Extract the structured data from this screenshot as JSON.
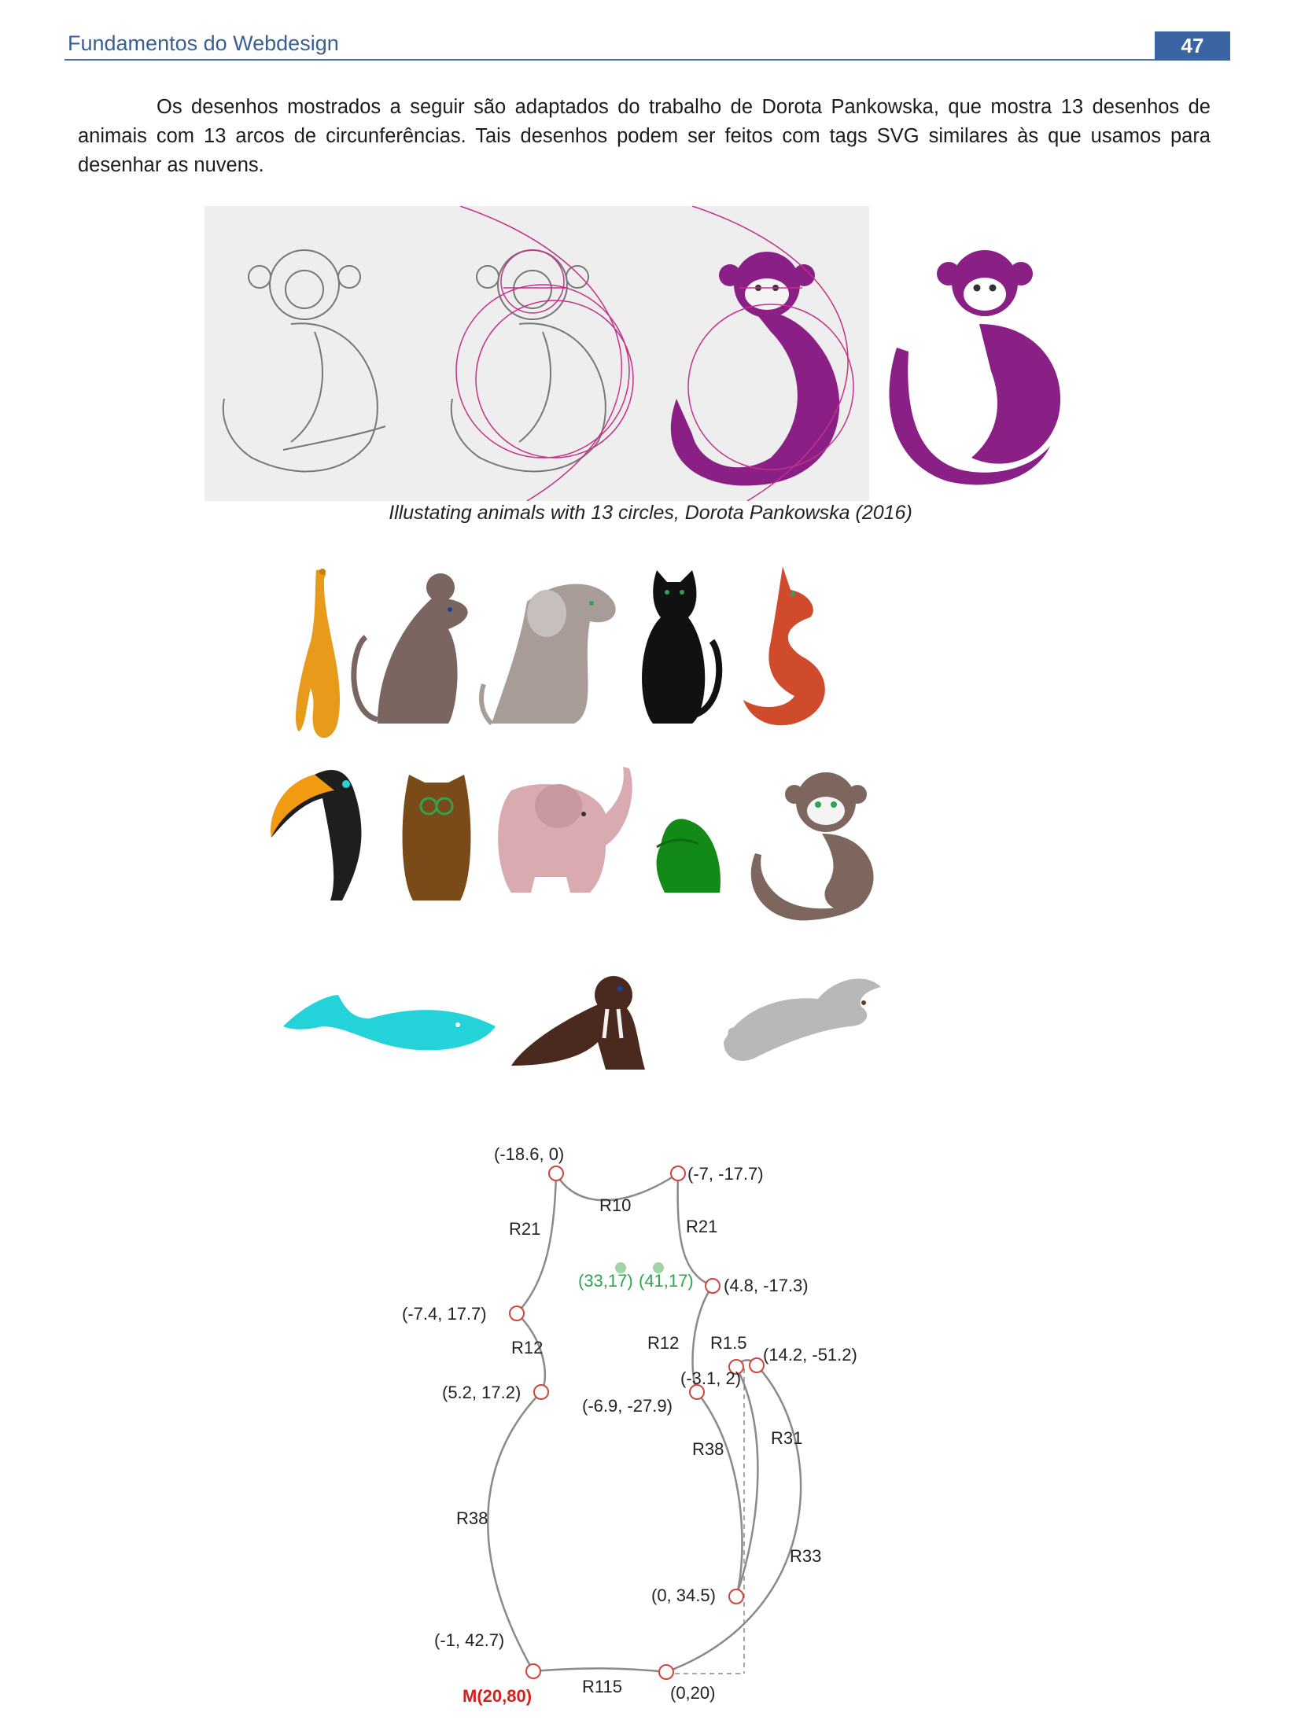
{
  "header": {
    "title": "Fundamentos do Webdesign",
    "page_number": "47"
  },
  "intro_text": "Os desenhos mostrados a seguir são adaptados do trabalho de Dorota Pankowska, que mostra 13 desenhos de animais com 13 arcos de circunferências. Tais desenhos podem ser feitos com tags SVG similares às que usamos para desenhar as nuvens.",
  "figure_caption": "Illustating animals with 13 circles, Dorota Pankowska (2016)",
  "colors": {
    "header_blue": "#3a5f91",
    "badge_blue": "#3b64a3",
    "monkey_purple": "#8a1f86",
    "guide_magenta": "#c4308a",
    "giraffe": "#e89b1a",
    "mouse": "#7a6560",
    "dog": "#a89c98",
    "cat": "#111111",
    "fox": "#d04a2c",
    "toucan_beak": "#f29a10",
    "owl": "#7a4a18",
    "elephant": "#d9aab0",
    "frog": "#138a18",
    "monkey_brown": "#7c665e",
    "whale": "#24d2da",
    "walrus": "#4a2a1e",
    "rabbit": "#b8b8b8"
  },
  "diagram": {
    "points": [
      {
        "label": "(-18.6, 0)"
      },
      {
        "label": "(-7, -17.7)"
      },
      {
        "label": "(-7.4, 17.7)"
      },
      {
        "label": "(4.8, -17.3)"
      },
      {
        "label": "(14.2, -51.2)"
      },
      {
        "label": "(-3.1, 2)"
      },
      {
        "label": "(5.2, 17.2)"
      },
      {
        "label": "(-6.9, -27.9)"
      },
      {
        "label": "(0, 34.5)"
      },
      {
        "label": "(-1, 42.7)"
      },
      {
        "label": "(0,20)"
      }
    ],
    "radii": {
      "top": "R10",
      "left_upper": "R21",
      "right_upper": "R21",
      "left_mid": "R12",
      "right_mid": "R12",
      "tail_tip": "R1.5",
      "left_body": "R38",
      "right_body": "R38",
      "tail_inner": "R31",
      "tail_outer": "R33",
      "bottom": "R115"
    },
    "eyes": {
      "left": "(33,17)",
      "right": "(41,17)"
    },
    "start_label": "M(20,80)"
  }
}
